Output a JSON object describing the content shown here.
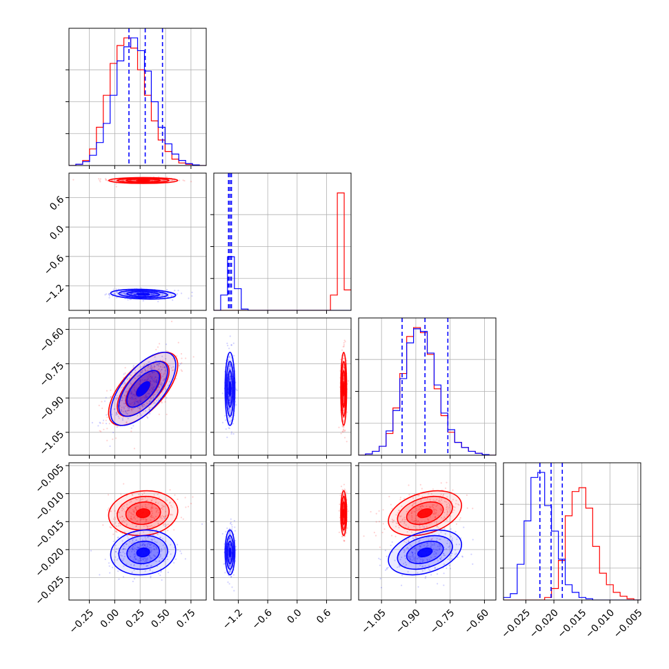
{
  "chart_data": {
    "type": "corner",
    "parameters": [
      "",
      "",
      "",
      ""
    ],
    "colors": {
      "sample_a": "#0000ff",
      "sample_b": "#ff0000"
    },
    "grid": true,
    "ranges": [
      [
        -0.45,
        0.9
      ],
      [
        -1.7,
        1.1
      ],
      [
        -1.15,
        -0.55
      ],
      [
        -0.029,
        -0.0045
      ]
    ],
    "ticks": [
      [
        "−0.25",
        "0.00",
        "0.25",
        "0.50",
        "0.75"
      ],
      [
        "−1.2",
        "−0.6",
        "0.0",
        "0.6"
      ],
      [
        "−1.05",
        "−0.90",
        "−0.75",
        "−0.60"
      ],
      [
        "−0.025",
        "−0.020",
        "−0.015",
        "−0.010",
        "−0.005"
      ]
    ],
    "tick_values": [
      [
        -0.25,
        0.0,
        0.25,
        0.5,
        0.75
      ],
      [
        -1.2,
        -0.6,
        0.0,
        0.6
      ],
      [
        -1.05,
        -0.9,
        -0.75,
        -0.6
      ],
      [
        -0.025,
        -0.02,
        -0.015,
        -0.01,
        -0.005
      ]
    ],
    "quantiles_sample_a": [
      [
        0.14,
        0.3,
        0.47
      ],
      [
        -1.4,
        -1.37,
        -1.34
      ],
      [
        -0.96,
        -0.86,
        -0.76
      ],
      [
        -0.0225,
        -0.0205,
        -0.0185
      ]
    ],
    "marginals": [
      {
        "edges_start": -0.45,
        "bin_width": 0.0675,
        "sample_a": [
          0,
          0.01,
          0.03,
          0.08,
          0.18,
          0.33,
          0.55,
          0.82,
          0.93,
          1.0,
          0.9,
          0.74,
          0.5,
          0.3,
          0.17,
          0.09,
          0.04,
          0.015,
          0.005,
          0
        ],
        "sample_b": [
          0,
          0.01,
          0.04,
          0.13,
          0.3,
          0.55,
          0.8,
          0.94,
          1.0,
          0.92,
          0.75,
          0.55,
          0.35,
          0.2,
          0.11,
          0.05,
          0.02,
          0.01,
          0,
          0
        ]
      },
      {
        "edges_start": -1.7,
        "bin_width": 0.14,
        "sample_a": [
          0,
          0.12,
          0.42,
          0.17,
          0.01,
          0,
          0,
          0,
          0,
          0,
          0,
          0,
          0,
          0,
          0,
          0,
          0,
          0,
          0,
          0
        ],
        "sample_b": [
          0,
          0,
          0,
          0,
          0,
          0,
          0,
          0,
          0,
          0,
          0,
          0,
          0,
          0,
          0,
          0,
          0,
          0.12,
          0.92,
          0.16
        ]
      },
      {
        "edges_start": -1.15,
        "bin_width": 0.03,
        "sample_a": [
          0,
          0.01,
          0.03,
          0.07,
          0.19,
          0.35,
          0.6,
          0.88,
          0.99,
          0.97,
          0.8,
          0.55,
          0.33,
          0.2,
          0.1,
          0.06,
          0.03,
          0.015,
          0.005,
          0
        ],
        "sample_b": [
          0,
          0.01,
          0.03,
          0.07,
          0.17,
          0.37,
          0.64,
          0.93,
          1.0,
          0.96,
          0.79,
          0.52,
          0.31,
          0.18,
          0.1,
          0.06,
          0.03,
          0.015,
          0.005,
          0
        ]
      },
      {
        "edges_start": -0.029,
        "bin_width": 0.001225,
        "sample_a": [
          0.02,
          0.05,
          0.28,
          0.62,
          0.96,
          1.0,
          0.74,
          0.54,
          0.32,
          0.12,
          0.06,
          0.02,
          0.01,
          0,
          0,
          0,
          0,
          0,
          0,
          0
        ],
        "sample_b": [
          0,
          0,
          0,
          0,
          0,
          0,
          0.02,
          0.09,
          0.31,
          0.66,
          0.85,
          0.88,
          0.72,
          0.42,
          0.21,
          0.12,
          0.06,
          0.03,
          0.01,
          0
        ]
      }
    ],
    "joint": {
      "sample_a": {
        "mean": [
          0.28,
          -1.37,
          -0.86,
          -0.0205
        ],
        "std": [
          0.16,
          0.05,
          0.08,
          0.002
        ],
        "corr": [
          [
            1,
            -0.2,
            0.65,
            0.1
          ],
          [
            -0.2,
            1,
            0,
            0
          ],
          [
            0.65,
            0,
            1,
            0.35
          ],
          [
            0.1,
            0,
            0.35,
            1
          ]
        ]
      },
      "sample_b": {
        "mean": [
          0.28,
          0.95,
          -0.86,
          -0.0135
        ],
        "std": [
          0.17,
          0.03,
          0.08,
          0.002
        ],
        "corr": [
          [
            1,
            0,
            0.65,
            0.1
          ],
          [
            0,
            1,
            0,
            0
          ],
          [
            0.65,
            0,
            1,
            0.35
          ],
          [
            0.1,
            0,
            0.35,
            1
          ]
        ]
      }
    }
  }
}
